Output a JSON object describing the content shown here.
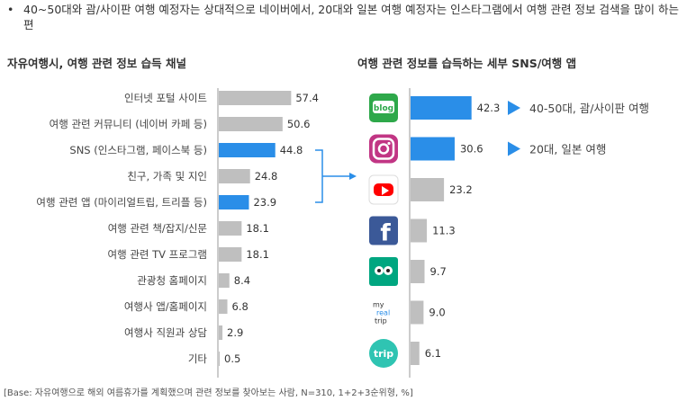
{
  "headline": {
    "bullet": "•",
    "text": "40~50대와 괌/사이판 여행 예정자는 상대적으로 네이버에서, 20대와 일본 여행 예정자는 인스타그램에서 여행 관련 정보 검색을 많이 하는 편"
  },
  "footnote": "[Base: 자유여행으로 해외 여름휴가를 계획했으며 관련 정보를 찾아보는 사람, N=310, 1+2+3순위형, %]",
  "chart_data": [
    {
      "type": "bar",
      "orientation": "horizontal",
      "title": "자유여행시, 여행 관련 정보 습득 채널",
      "categories": [
        "인터넷 포털 사이트",
        "여행 관련 커뮤니티 (네이버 카페 등)",
        "SNS (인스타그램, 페이스북 등)",
        "친구, 가족 및 지인",
        "여행 관련 앱 (마이리얼트립, 트리플 등)",
        "여행 관련 책/잡지/신문",
        "여행 관련 TV 프로그램",
        "관광청 홈페이지",
        "여행사 앱/홈페이지",
        "여행사 직원과 상담",
        "기타"
      ],
      "values": [
        57.4,
        50.6,
        44.8,
        24.8,
        23.9,
        18.1,
        18.1,
        8.4,
        6.8,
        2.9,
        0.5
      ],
      "highlighted": [
        2,
        4
      ],
      "colors": {
        "default": "#bfbfbf",
        "highlight": "#2a8ee8"
      }
    },
    {
      "type": "bar",
      "orientation": "horizontal",
      "title": "여행 관련 정보를 습득하는 세부 SNS/여행 앱",
      "categories": [
        "blog",
        "instagram",
        "youtube",
        "facebook",
        "tripadvisor",
        "myrealtrip",
        "trip"
      ],
      "category_icons": [
        "blog-icon",
        "instagram-icon",
        "youtube-icon",
        "facebook-icon",
        "tripadvisor-icon",
        "myrealtrip-icon",
        "triple-icon"
      ],
      "values": [
        42.3,
        30.6,
        23.2,
        11.3,
        9.7,
        9.0,
        6.1
      ],
      "highlighted": [
        0,
        1
      ],
      "colors": {
        "default": "#bfbfbf",
        "highlight": "#2a8ee8"
      },
      "icon_labels": {
        "blog": "blog",
        "myrealtrip": [
          "my",
          "real",
          "trip"
        ],
        "trip": "trip"
      },
      "annotations": [
        {
          "target": 0,
          "text": "40-50대, 괌/사이판 여행"
        },
        {
          "target": 1,
          "text": "20대, 일본 여행"
        }
      ]
    }
  ]
}
